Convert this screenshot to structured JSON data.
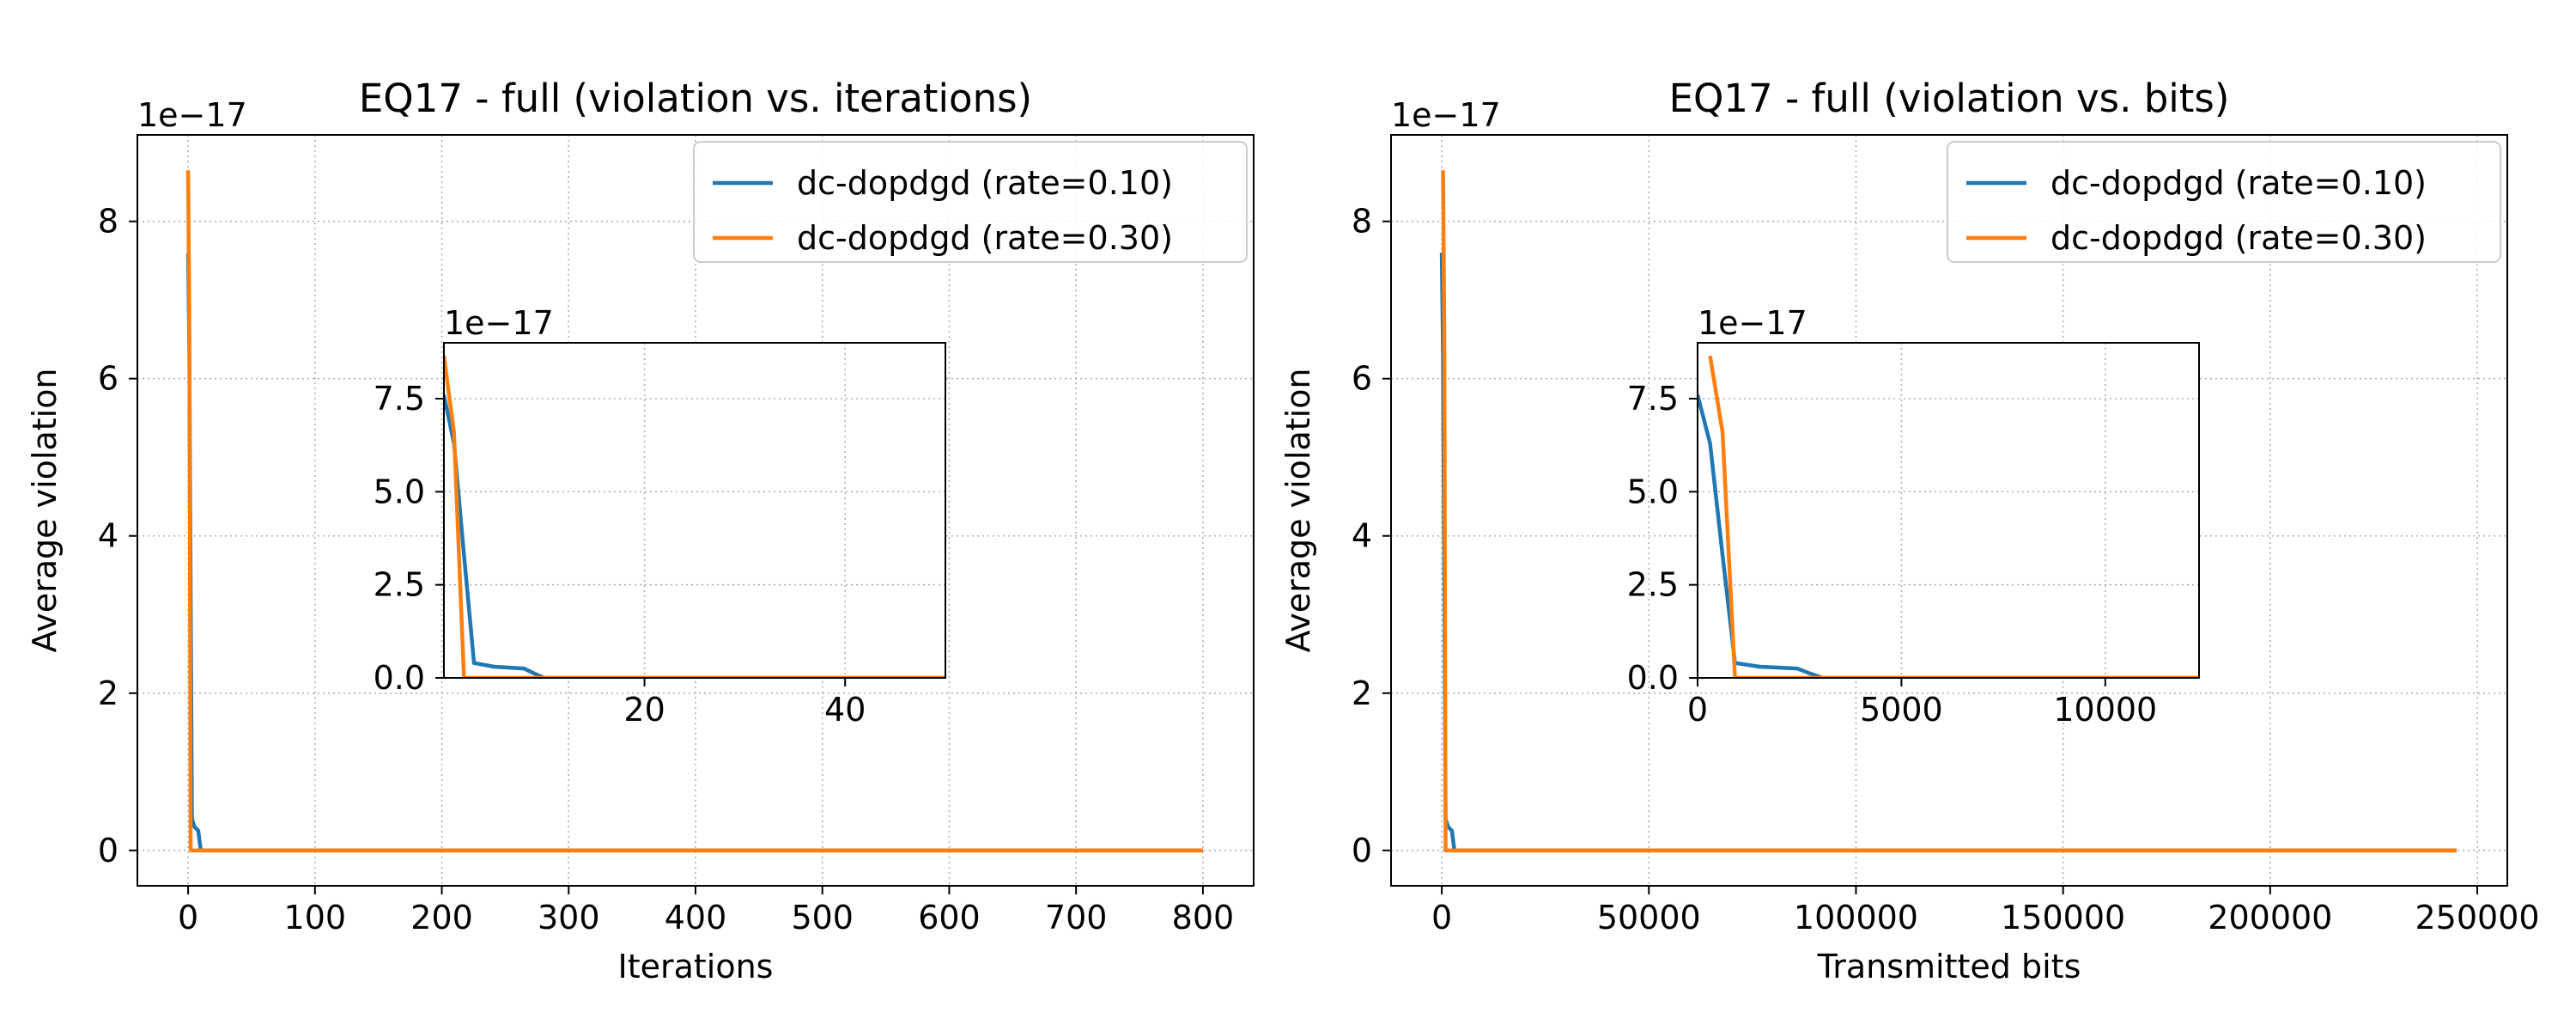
{
  "colors": {
    "rate_010": "#1f77b4",
    "rate_030": "#ff7f0e",
    "grid": "#b0b0b0"
  },
  "chart_data": [
    {
      "id": "left",
      "type": "line",
      "title": "EQ17 - full (violation vs. iterations)",
      "xlabel": "Iterations",
      "ylabel": "Average violation",
      "y_offset_text": "1e−17",
      "xlim": [
        -40,
        840
      ],
      "ylim": [
        -0.45,
        9.1
      ],
      "xticks": [
        0,
        100,
        200,
        300,
        400,
        500,
        600,
        700,
        800
      ],
      "xtick_labels": [
        "0",
        "100",
        "200",
        "300",
        "400",
        "500",
        "600",
        "700",
        "800"
      ],
      "yticks": [
        0,
        2,
        4,
        6,
        8
      ],
      "ytick_labels": [
        "0",
        "2",
        "4",
        "6",
        "8"
      ],
      "grid": true,
      "legend": {
        "placement": "top-right",
        "entries": [
          "dc-dopdgd (rate=0.10)",
          "dc-dopdgd (rate=0.30)"
        ]
      },
      "series": [
        {
          "name": "dc-dopdgd (rate=0.10)",
          "color": "#1f77b4",
          "x": [
            0,
            1,
            2,
            3,
            5,
            8,
            9,
            10,
            800
          ],
          "y": [
            7.6,
            6.3,
            3.3,
            0.4,
            0.3,
            0.25,
            0.12,
            0.0,
            0.0
          ]
        },
        {
          "name": "dc-dopdgd (rate=0.30)",
          "color": "#ff7f0e",
          "x": [
            0,
            1,
            2,
            800
          ],
          "y": [
            8.65,
            6.6,
            0.0,
            0.0
          ]
        }
      ],
      "inset": {
        "y_offset_text": "1e−17",
        "xlim": [
          0,
          50
        ],
        "ylim": [
          0,
          9.0
        ],
        "xticks": [
          20,
          40
        ],
        "xtick_labels": [
          "20",
          "40"
        ],
        "yticks": [
          0,
          2.5,
          5.0,
          7.5
        ],
        "ytick_labels": [
          "0.0",
          "2.5",
          "5.0",
          "7.5"
        ],
        "grid": true
      }
    },
    {
      "id": "right",
      "type": "line",
      "title": "EQ17 - full (violation vs. bits)",
      "xlabel": "Transmitted bits",
      "ylabel": "Average violation",
      "y_offset_text": "1e−17",
      "xlim": [
        -12250,
        257250
      ],
      "ylim": [
        -0.45,
        9.1
      ],
      "xticks": [
        0,
        50000,
        100000,
        150000,
        200000,
        250000
      ],
      "xtick_labels": [
        "0",
        "50000",
        "100000",
        "150000",
        "200000",
        "250000"
      ],
      "yticks": [
        0,
        2,
        4,
        6,
        8
      ],
      "ytick_labels": [
        "0",
        "2",
        "4",
        "6",
        "8"
      ],
      "grid": true,
      "legend": {
        "placement": "top-right",
        "entries": [
          "dc-dopdgd (rate=0.10)",
          "dc-dopdgd (rate=0.30)"
        ]
      },
      "series": [
        {
          "name": "dc-dopdgd (rate=0.10)",
          "color": "#1f77b4",
          "x": [
            0,
            306,
            612,
            918,
            1530,
            2448,
            2754,
            3060,
            245000
          ],
          "y": [
            7.6,
            6.3,
            3.3,
            0.4,
            0.3,
            0.25,
            0.12,
            0.0,
            0.0
          ]
        },
        {
          "name": "dc-dopdgd (rate=0.30)",
          "color": "#ff7f0e",
          "x": [
            306,
            612,
            918,
            245000
          ],
          "y": [
            8.65,
            6.6,
            0.0,
            0.0
          ]
        }
      ],
      "inset": {
        "y_offset_text": "1e−17",
        "xlim": [
          0,
          12300
        ],
        "ylim": [
          0,
          9.0
        ],
        "xticks": [
          0,
          5000,
          10000
        ],
        "xtick_labels": [
          "0",
          "5000",
          "10000"
        ],
        "yticks": [
          0,
          2.5,
          5.0,
          7.5
        ],
        "ytick_labels": [
          "0.0",
          "2.5",
          "5.0",
          "7.5"
        ],
        "grid": true
      }
    }
  ]
}
